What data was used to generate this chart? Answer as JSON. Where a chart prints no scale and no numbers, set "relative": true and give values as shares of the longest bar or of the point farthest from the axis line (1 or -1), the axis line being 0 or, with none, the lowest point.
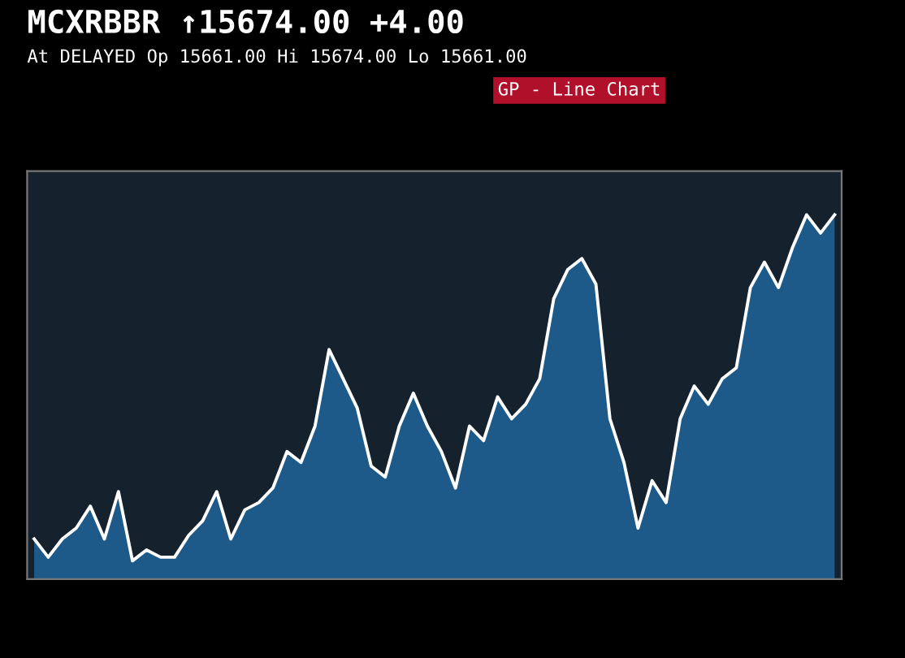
{
  "chart_data": {
    "type": "area",
    "title": "MCXRBBR ↑15674.00 +4.00",
    "subtitle": "At DELAYED Op 15661.00 Hi 15674.00 Lo 15661.00",
    "annotations": [
      "GP - Line Chart"
    ],
    "relative": true,
    "categories": [
      null,
      null,
      null,
      null,
      null,
      null,
      null,
      null,
      null,
      null,
      null,
      null,
      null,
      null,
      null,
      null,
      null,
      null,
      null,
      null,
      null,
      null,
      null,
      null,
      null,
      null,
      null,
      null,
      null,
      null,
      null,
      null,
      null,
      null,
      null,
      null,
      null,
      null,
      null,
      null,
      null,
      null,
      null,
      null,
      null,
      null,
      null,
      null,
      null,
      null,
      null,
      null,
      null,
      null,
      null,
      null,
      null,
      null
    ],
    "series": [
      {
        "color": "#1d5a8a",
        "values": [
          0.11,
          0.06,
          0.11,
          0.14,
          0.2,
          0.11,
          0.24,
          0.05,
          0.08,
          0.06,
          0.06,
          0.12,
          0.16,
          0.24,
          0.11,
          0.19,
          0.21,
          0.25,
          0.35,
          0.32,
          0.42,
          0.63,
          0.55,
          0.47,
          0.31,
          0.28,
          0.42,
          0.51,
          0.42,
          0.35,
          0.25,
          0.42,
          0.38,
          0.5,
          0.44,
          0.48,
          0.55,
          0.77,
          0.85,
          0.88,
          0.81,
          0.44,
          0.32,
          0.14,
          0.27,
          0.21,
          0.44,
          0.53,
          0.48,
          0.55,
          0.58,
          0.8,
          0.87,
          0.8,
          0.91,
          1,
          0.95,
          1
        ]
      }
    ]
  }
}
